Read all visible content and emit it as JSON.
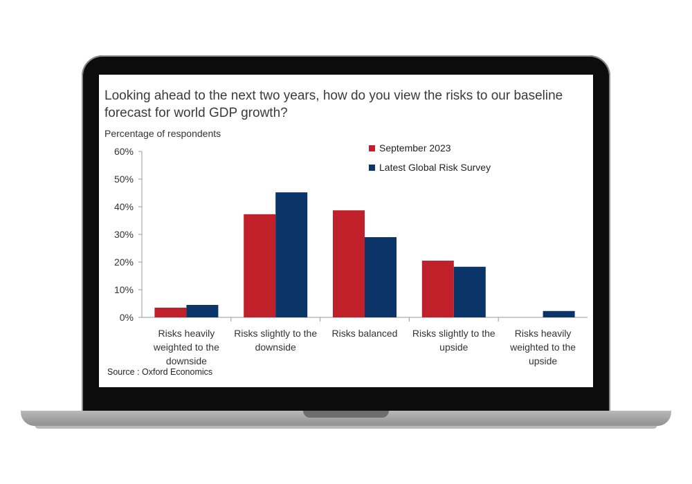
{
  "chart_data": {
    "type": "bar",
    "title": "Looking ahead to the next two years, how do you view the risks to our baseline forecast for world GDP growth?",
    "ylabel": "Percentage of respondents",
    "xlabel": "",
    "categories": [
      [
        "Risks heavily",
        "weighted to the",
        "downside"
      ],
      [
        "Risks slightly to the",
        "downside"
      ],
      [
        "Risks balanced"
      ],
      [
        "Risks slightly to the",
        "upside"
      ],
      [
        "Risks heavily",
        "weighted to the",
        "upside"
      ]
    ],
    "series": [
      {
        "name": "September 2023",
        "color": "#c0202a",
        "values": [
          3.5,
          37.3,
          38.7,
          20.5,
          0
        ]
      },
      {
        "name": "Latest Global Risk Survey",
        "color": "#0b3468",
        "values": [
          4.5,
          45.2,
          29.0,
          18.3,
          2.3
        ]
      }
    ],
    "ylim": [
      0,
      60
    ],
    "yticks": [
      0,
      10,
      20,
      30,
      40,
      50,
      60
    ],
    "ytick_labels": [
      "0%",
      "10%",
      "20%",
      "30%",
      "40%",
      "50%",
      "60%"
    ],
    "legend_position": "top-right",
    "grid": false,
    "source": "Source : Oxford Economics"
  }
}
